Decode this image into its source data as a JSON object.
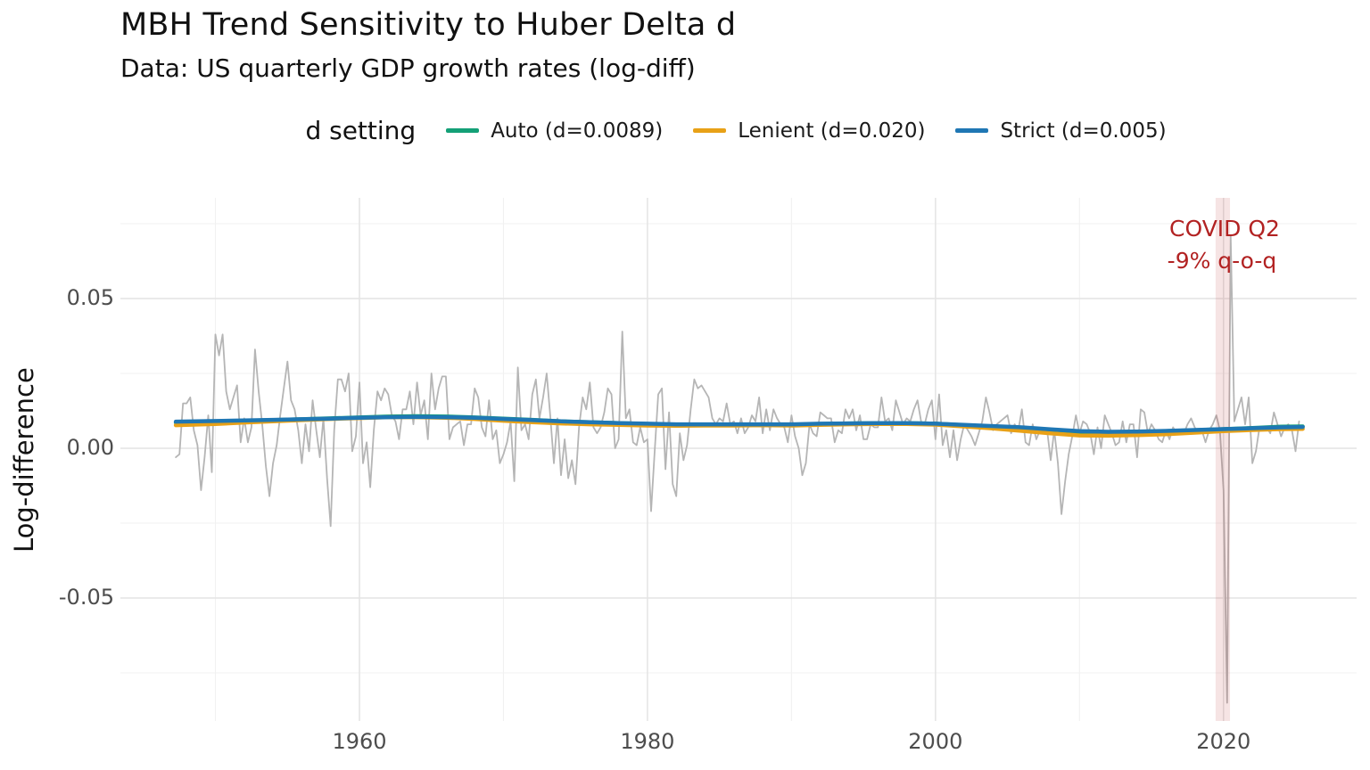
{
  "header": {
    "title": "MBH Trend Sensitivity to Huber Delta d",
    "subtitle": "Data: US quarterly GDP growth rates (log-diff)"
  },
  "legend": {
    "title": "d setting"
  },
  "axes": {
    "y_label": "Log-difference",
    "x_tick_labels": [
      "1960",
      "1980",
      "2000",
      "2020"
    ],
    "y_tick_labels": [
      "0.05",
      "0.00",
      "-0.05"
    ]
  },
  "annotation": {
    "line1": "COVID Q2",
    "line2": "-9% q-o-q",
    "color": "#b22222",
    "band_x0": 2019.45,
    "band_x1": 2020.45,
    "band_fill_rgba": "rgba(178,34,34,0.12)"
  },
  "colors": {
    "raw_series": "#b5b5b5",
    "auto_green": "#14a077",
    "lenient_orange": "#e8a117",
    "strict_blue": "#1f77b4",
    "grid_major": "#e4e4e4",
    "grid_minor": "#f1f1f1",
    "tick_text": "#4d4d4d"
  },
  "chart_data": {
    "type": "line",
    "title": "MBH Trend Sensitivity to Huber Delta d",
    "subtitle": "Data: US quarterly GDP growth rates (log-diff)",
    "xlabel": "",
    "ylabel": "Log-difference",
    "xlim": [
      1943.3,
      2029.5
    ],
    "ylim": [
      -0.0911,
      0.0836
    ],
    "grid": true,
    "legend_position": "top-center",
    "x_ticks": [
      {
        "label": "1960",
        "value": 1960
      },
      {
        "label": "1980",
        "value": 1980
      },
      {
        "label": "2000",
        "value": 2000
      },
      {
        "label": "2020",
        "value": 2020
      }
    ],
    "y_ticks": [
      {
        "label": "0.05",
        "value": 0.05
      },
      {
        "label": "0.00",
        "value": 0.0
      },
      {
        "label": "-0.05",
        "value": -0.05
      }
    ],
    "x_minor": [
      1950,
      1970,
      1990,
      2010
    ],
    "y_minor": [
      0.075,
      0.025,
      -0.025,
      -0.075
    ],
    "raw_series": {
      "name": "US quarterly GDP growth (log-diff)",
      "color": "#b5b5b5",
      "x_start": 1947.25,
      "x_step": 0.25,
      "values": [
        -0.003,
        -0.002,
        0.015,
        0.015,
        0.017,
        0.006,
        0.001,
        -0.014,
        -0.003,
        0.011,
        -0.008,
        0.038,
        0.031,
        0.038,
        0.019,
        0.013,
        0.017,
        0.021,
        0.002,
        0.01,
        0.002,
        0.007,
        0.033,
        0.019,
        0.008,
        -0.006,
        -0.016,
        -0.005,
        0.001,
        0.011,
        0.02,
        0.029,
        0.016,
        0.013,
        0.006,
        -0.005,
        0.008,
        -0.001,
        0.016,
        0.006,
        -0.003,
        0.01,
        -0.01,
        -0.026,
        0.006,
        0.023,
        0.023,
        0.019,
        0.025,
        -0.001,
        0.004,
        0.022,
        -0.005,
        0.002,
        -0.013,
        0.006,
        0.019,
        0.016,
        0.02,
        0.018,
        0.011,
        0.009,
        0.003,
        0.013,
        0.013,
        0.019,
        0.008,
        0.022,
        0.011,
        0.016,
        0.003,
        0.025,
        0.013,
        0.02,
        0.024,
        0.024,
        0.003,
        0.007,
        0.008,
        0.009,
        0.001,
        0.008,
        0.008,
        0.02,
        0.017,
        0.007,
        0.004,
        0.016,
        0.003,
        0.006,
        -0.005,
        -0.002,
        0.002,
        0.009,
        -0.011,
        0.027,
        0.006,
        0.008,
        0.003,
        0.018,
        0.023,
        0.01,
        0.017,
        0.025,
        0.011,
        -0.005,
        0.01,
        -0.009,
        0.003,
        -0.01,
        -0.004,
        -0.012,
        0.007,
        0.017,
        0.013,
        0.022,
        0.007,
        0.005,
        0.007,
        0.012,
        0.02,
        0.018,
        0.0,
        0.003,
        0.039,
        0.01,
        0.013,
        0.002,
        0.001,
        0.007,
        0.002,
        0.003,
        -0.021,
        -0.001,
        0.018,
        0.02,
        -0.007,
        0.012,
        -0.012,
        -0.016,
        0.005,
        -0.004,
        0.001,
        0.013,
        0.023,
        0.02,
        0.021,
        0.019,
        0.017,
        0.01,
        0.008,
        0.01,
        0.009,
        0.015,
        0.008,
        0.009,
        0.005,
        0.01,
        0.005,
        0.007,
        0.011,
        0.009,
        0.017,
        0.005,
        0.013,
        0.006,
        0.013,
        0.01,
        0.008,
        0.007,
        0.002,
        0.011,
        0.004,
        0.0,
        -0.009,
        -0.005,
        0.008,
        0.005,
        0.004,
        0.012,
        0.011,
        0.01,
        0.01,
        0.002,
        0.006,
        0.005,
        0.013,
        0.01,
        0.013,
        0.006,
        0.011,
        0.003,
        0.003,
        0.008,
        0.007,
        0.007,
        0.017,
        0.009,
        0.01,
        0.006,
        0.016,
        0.012,
        0.008,
        0.01,
        0.009,
        0.013,
        0.016,
        0.009,
        0.008,
        0.013,
        0.016,
        0.003,
        0.018,
        0.001,
        0.006,
        -0.003,
        0.006,
        -0.004,
        0.003,
        0.008,
        0.006,
        0.004,
        0.001,
        0.005,
        0.009,
        0.017,
        0.012,
        0.006,
        0.008,
        0.009,
        0.01,
        0.011,
        0.005,
        0.008,
        0.006,
        0.013,
        0.002,
        0.001,
        0.008,
        0.003,
        0.006,
        0.006,
        0.006,
        -0.004,
        0.006,
        -0.005,
        -0.022,
        -0.011,
        -0.002,
        0.004,
        0.011,
        0.005,
        0.009,
        0.008,
        0.005,
        -0.002,
        0.007,
        0.0,
        0.011,
        0.008,
        0.005,
        0.001,
        0.002,
        0.009,
        0.002,
        0.008,
        0.008,
        -0.003,
        0.013,
        0.012,
        0.005,
        0.008,
        0.006,
        0.003,
        0.002,
        0.006,
        0.003,
        0.007,
        0.005,
        0.005,
        0.005,
        0.008,
        0.01,
        0.007,
        0.005,
        0.006,
        0.002,
        0.006,
        0.008,
        0.011,
        0.006,
        -0.014,
        -0.085,
        0.071,
        0.009,
        0.013,
        0.017,
        0.008,
        0.017,
        -0.005,
        -0.001,
        0.007,
        0.006,
        0.007,
        0.005,
        0.012,
        0.008,
        0.004,
        0.007,
        0.008,
        0.006,
        -0.001,
        0.009
      ]
    },
    "series": [
      {
        "name": "Auto (d=0.0089)",
        "color": "#14a077",
        "x": [
          1947.25,
          1950,
          1952,
          1954,
          1956,
          1958,
          1960,
          1962,
          1964,
          1966,
          1968,
          1970,
          1972,
          1974,
          1976,
          1978,
          1980,
          1982,
          1984,
          1986,
          1988,
          1990,
          1992,
          1994,
          1996,
          1998,
          2000,
          2002,
          2004,
          2006,
          2008,
          2010,
          2012,
          2014,
          2016,
          2018,
          2020,
          2022,
          2024,
          2025.5
        ],
        "values": [
          0.0086,
          0.0089,
          0.0092,
          0.0094,
          0.0097,
          0.01,
          0.0103,
          0.0106,
          0.0107,
          0.0106,
          0.0103,
          0.0099,
          0.0095,
          0.009,
          0.0087,
          0.0084,
          0.0081,
          0.0079,
          0.0079,
          0.0079,
          0.0079,
          0.0079,
          0.0081,
          0.0083,
          0.0084,
          0.0084,
          0.0082,
          0.0077,
          0.0072,
          0.0068,
          0.0061,
          0.0055,
          0.0053,
          0.0055,
          0.0057,
          0.006,
          0.0064,
          0.0068,
          0.0072,
          0.0073
        ]
      },
      {
        "name": "Lenient (d=0.020)",
        "color": "#e8a117",
        "x": [
          1947.25,
          1950,
          1952,
          1954,
          1956,
          1958,
          1960,
          1962,
          1964,
          1966,
          1968,
          1970,
          1972,
          1974,
          1976,
          1978,
          1980,
          1982,
          1984,
          1986,
          1988,
          1990,
          1992,
          1994,
          1996,
          1998,
          2000,
          2002,
          2004,
          2006,
          2008,
          2010,
          2012,
          2014,
          2016,
          2018,
          2020,
          2022,
          2024,
          2025.5
        ],
        "values": [
          0.0077,
          0.0081,
          0.0086,
          0.009,
          0.0094,
          0.0098,
          0.0101,
          0.0104,
          0.0104,
          0.0102,
          0.0098,
          0.0092,
          0.0087,
          0.0083,
          0.008,
          0.0078,
          0.0076,
          0.0075,
          0.0076,
          0.0076,
          0.0077,
          0.0076,
          0.0078,
          0.008,
          0.0081,
          0.0081,
          0.0079,
          0.0073,
          0.0066,
          0.0058,
          0.005,
          0.0043,
          0.0042,
          0.0044,
          0.0047,
          0.0052,
          0.0057,
          0.0061,
          0.0064,
          0.0065
        ]
      },
      {
        "name": "Strict (d=0.005)",
        "color": "#1f77b4",
        "x": [
          1947.25,
          1950,
          1952,
          1954,
          1956,
          1958,
          1960,
          1962,
          1964,
          1966,
          1968,
          1970,
          1972,
          1974,
          1976,
          1978,
          1980,
          1982,
          1984,
          1986,
          1988,
          1990,
          1992,
          1994,
          1996,
          1998,
          2000,
          2002,
          2004,
          2006,
          2008,
          2010,
          2012,
          2014,
          2016,
          2018,
          2020,
          2022,
          2024,
          2025.5
        ],
        "values": [
          0.0089,
          0.0091,
          0.0093,
          0.0095,
          0.0097,
          0.0099,
          0.0102,
          0.0104,
          0.0105,
          0.0104,
          0.0102,
          0.0098,
          0.0094,
          0.009,
          0.0087,
          0.0084,
          0.0082,
          0.008,
          0.008,
          0.008,
          0.008,
          0.008,
          0.0082,
          0.0083,
          0.0084,
          0.0084,
          0.0082,
          0.0078,
          0.0074,
          0.007,
          0.0063,
          0.0057,
          0.0055,
          0.0056,
          0.0058,
          0.0061,
          0.0064,
          0.0067,
          0.007,
          0.0071
        ]
      }
    ],
    "annotations": [
      {
        "type": "vband",
        "x0": 2019.45,
        "x1": 2020.45,
        "fill": "rgba(178,34,34,0.12)"
      },
      {
        "type": "text",
        "text": "COVID Q2",
        "x": 2020.0,
        "y": 0.073,
        "color": "#b22222"
      },
      {
        "type": "text",
        "text": "-9% q-o-q",
        "x": 2020.0,
        "y": 0.063,
        "color": "#b22222"
      }
    ]
  }
}
